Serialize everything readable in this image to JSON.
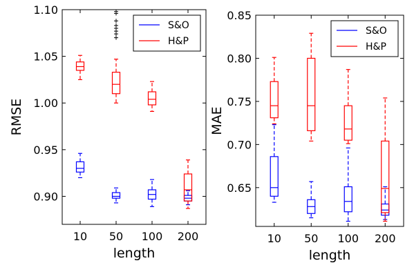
{
  "chart_data": [
    {
      "type": "box",
      "xlabel": "length",
      "ylabel": "RMSE",
      "categories": [
        "10",
        "50",
        "100",
        "200"
      ],
      "ylim": [
        0.87,
        1.1
      ],
      "yticks": [
        "0.90",
        "0.95",
        "1.00",
        "1.05",
        "1.10"
      ],
      "grid": false,
      "legend_position": "top-right",
      "series": [
        {
          "name": "S&O",
          "color": "#0000ff",
          "boxes": [
            {
              "whislo": 0.92,
              "q1": 0.926,
              "med": 0.93,
              "q3": 0.937,
              "whishi": 0.946,
              "fliers": []
            },
            {
              "whislo": 0.893,
              "q1": 0.898,
              "med": 0.9,
              "q3": 0.904,
              "whishi": 0.909,
              "fliers": []
            },
            {
              "whislo": 0.889,
              "q1": 0.897,
              "med": 0.902,
              "q3": 0.907,
              "whishi": 0.918,
              "fliers": []
            },
            {
              "whislo": 0.891,
              "q1": 0.895,
              "med": 0.898,
              "q3": 0.901,
              "whishi": 0.906,
              "fliers": []
            }
          ]
        },
        {
          "name": "H&P",
          "color": "#ff0000",
          "boxes": [
            {
              "whislo": 1.025,
              "q1": 1.035,
              "med": 1.039,
              "q3": 1.044,
              "whishi": 1.051,
              "fliers": []
            },
            {
              "whislo": 1.0,
              "q1": 1.01,
              "med": 1.02,
              "q3": 1.033,
              "whishi": 1.047,
              "fliers": [
                1.07,
                1.074,
                1.077,
                1.08,
                1.083,
                1.088,
                1.096,
                1.098
              ]
            },
            {
              "whislo": 0.991,
              "q1": 0.998,
              "med": 1.004,
              "q3": 1.012,
              "whishi": 1.023,
              "fliers": []
            },
            {
              "whislo": 0.887,
              "q1": 0.895,
              "med": 0.907,
              "q3": 0.924,
              "whishi": 0.939,
              "fliers": []
            }
          ]
        }
      ]
    },
    {
      "type": "box",
      "xlabel": "length",
      "ylabel": "MAE",
      "categories": [
        "10",
        "50",
        "100",
        "200"
      ],
      "ylim": [
        0.605,
        0.85
      ],
      "yticks": [
        "0.65",
        "0.70",
        "0.75",
        "0.80",
        "0.85"
      ],
      "grid": false,
      "legend_position": "top-right",
      "series": [
        {
          "name": "S&O",
          "color": "#0000ff",
          "boxes": [
            {
              "whislo": 0.633,
              "q1": 0.64,
              "med": 0.65,
              "q3": 0.686,
              "whishi": 0.723,
              "fliers": []
            },
            {
              "whislo": 0.615,
              "q1": 0.62,
              "med": 0.628,
              "q3": 0.636,
              "whishi": 0.657,
              "fliers": []
            },
            {
              "whislo": 0.611,
              "q1": 0.622,
              "med": 0.634,
              "q3": 0.651,
              "whishi": 0.696,
              "fliers": []
            },
            {
              "whislo": 0.613,
              "q1": 0.618,
              "med": 0.624,
              "q3": 0.631,
              "whishi": 0.651,
              "fliers": []
            }
          ]
        },
        {
          "name": "H&P",
          "color": "#ff0000",
          "boxes": [
            {
              "whislo": 0.724,
              "q1": 0.731,
              "med": 0.745,
              "q3": 0.773,
              "whishi": 0.801,
              "fliers": []
            },
            {
              "whislo": 0.704,
              "q1": 0.716,
              "med": 0.745,
              "q3": 0.8,
              "whishi": 0.829,
              "fliers": []
            },
            {
              "whislo": 0.701,
              "q1": 0.705,
              "med": 0.718,
              "q3": 0.745,
              "whishi": 0.787,
              "fliers": []
            },
            {
              "whislo": 0.611,
              "q1": 0.621,
              "med": 0.649,
              "q3": 0.704,
              "whishi": 0.754,
              "fliers": []
            }
          ]
        }
      ]
    }
  ]
}
